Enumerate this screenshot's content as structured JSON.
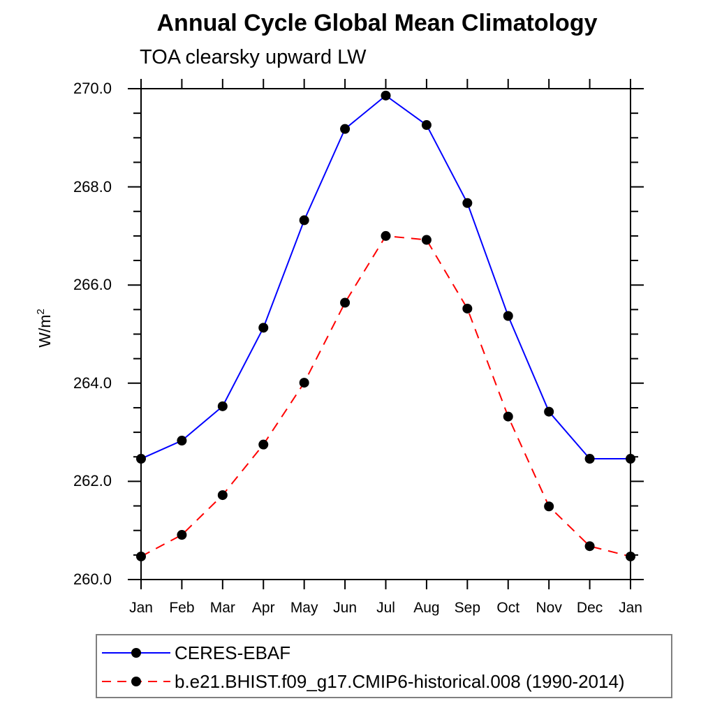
{
  "header": {
    "title": "Annual Cycle Global Mean Climatology",
    "subtitle": "TOA clearsky upward LW"
  },
  "chart_data": {
    "type": "line",
    "title": "Annual Cycle Global Mean Climatology",
    "subtitle": "TOA clearsky upward LW",
    "ylabel": "W/m²",
    "ylabel_base": "W/m",
    "ylabel_exponent": "2",
    "xlabel": "",
    "categories": [
      "Jan",
      "Feb",
      "Mar",
      "Apr",
      "May",
      "Jun",
      "Jul",
      "Aug",
      "Sep",
      "Oct",
      "Nov",
      "Dec",
      "Jan"
    ],
    "ylim": [
      260.0,
      270.0
    ],
    "ytick_major_values": [
      260,
      262,
      264,
      266,
      268,
      270
    ],
    "ytick_major_labels": [
      "260.0",
      "262.0",
      "264.0",
      "266.0",
      "268.0",
      "270.0"
    ],
    "ytick_minor_step": 0.5,
    "grid": false,
    "legend_position": "below-left-box",
    "axis_color": "#000000",
    "marker_color": "#000000",
    "series": [
      {
        "name": "CERES-EBAF",
        "color": "#0000ff",
        "line_style": "solid",
        "marker": "filled-circle",
        "values": [
          262.46,
          262.83,
          263.53,
          265.13,
          267.32,
          269.18,
          269.86,
          269.26,
          267.67,
          265.37,
          263.42,
          262.46,
          262.46
        ]
      },
      {
        "name": "b.e21.BHIST.f09_g17.CMIP6-historical.008 (1990-2014)",
        "color": "#ff0000",
        "line_style": "dashed",
        "marker": "filled-circle",
        "values": [
          260.47,
          260.91,
          261.72,
          262.75,
          264.01,
          265.64,
          267.0,
          266.92,
          265.52,
          263.32,
          261.49,
          260.68,
          260.47
        ]
      }
    ]
  }
}
